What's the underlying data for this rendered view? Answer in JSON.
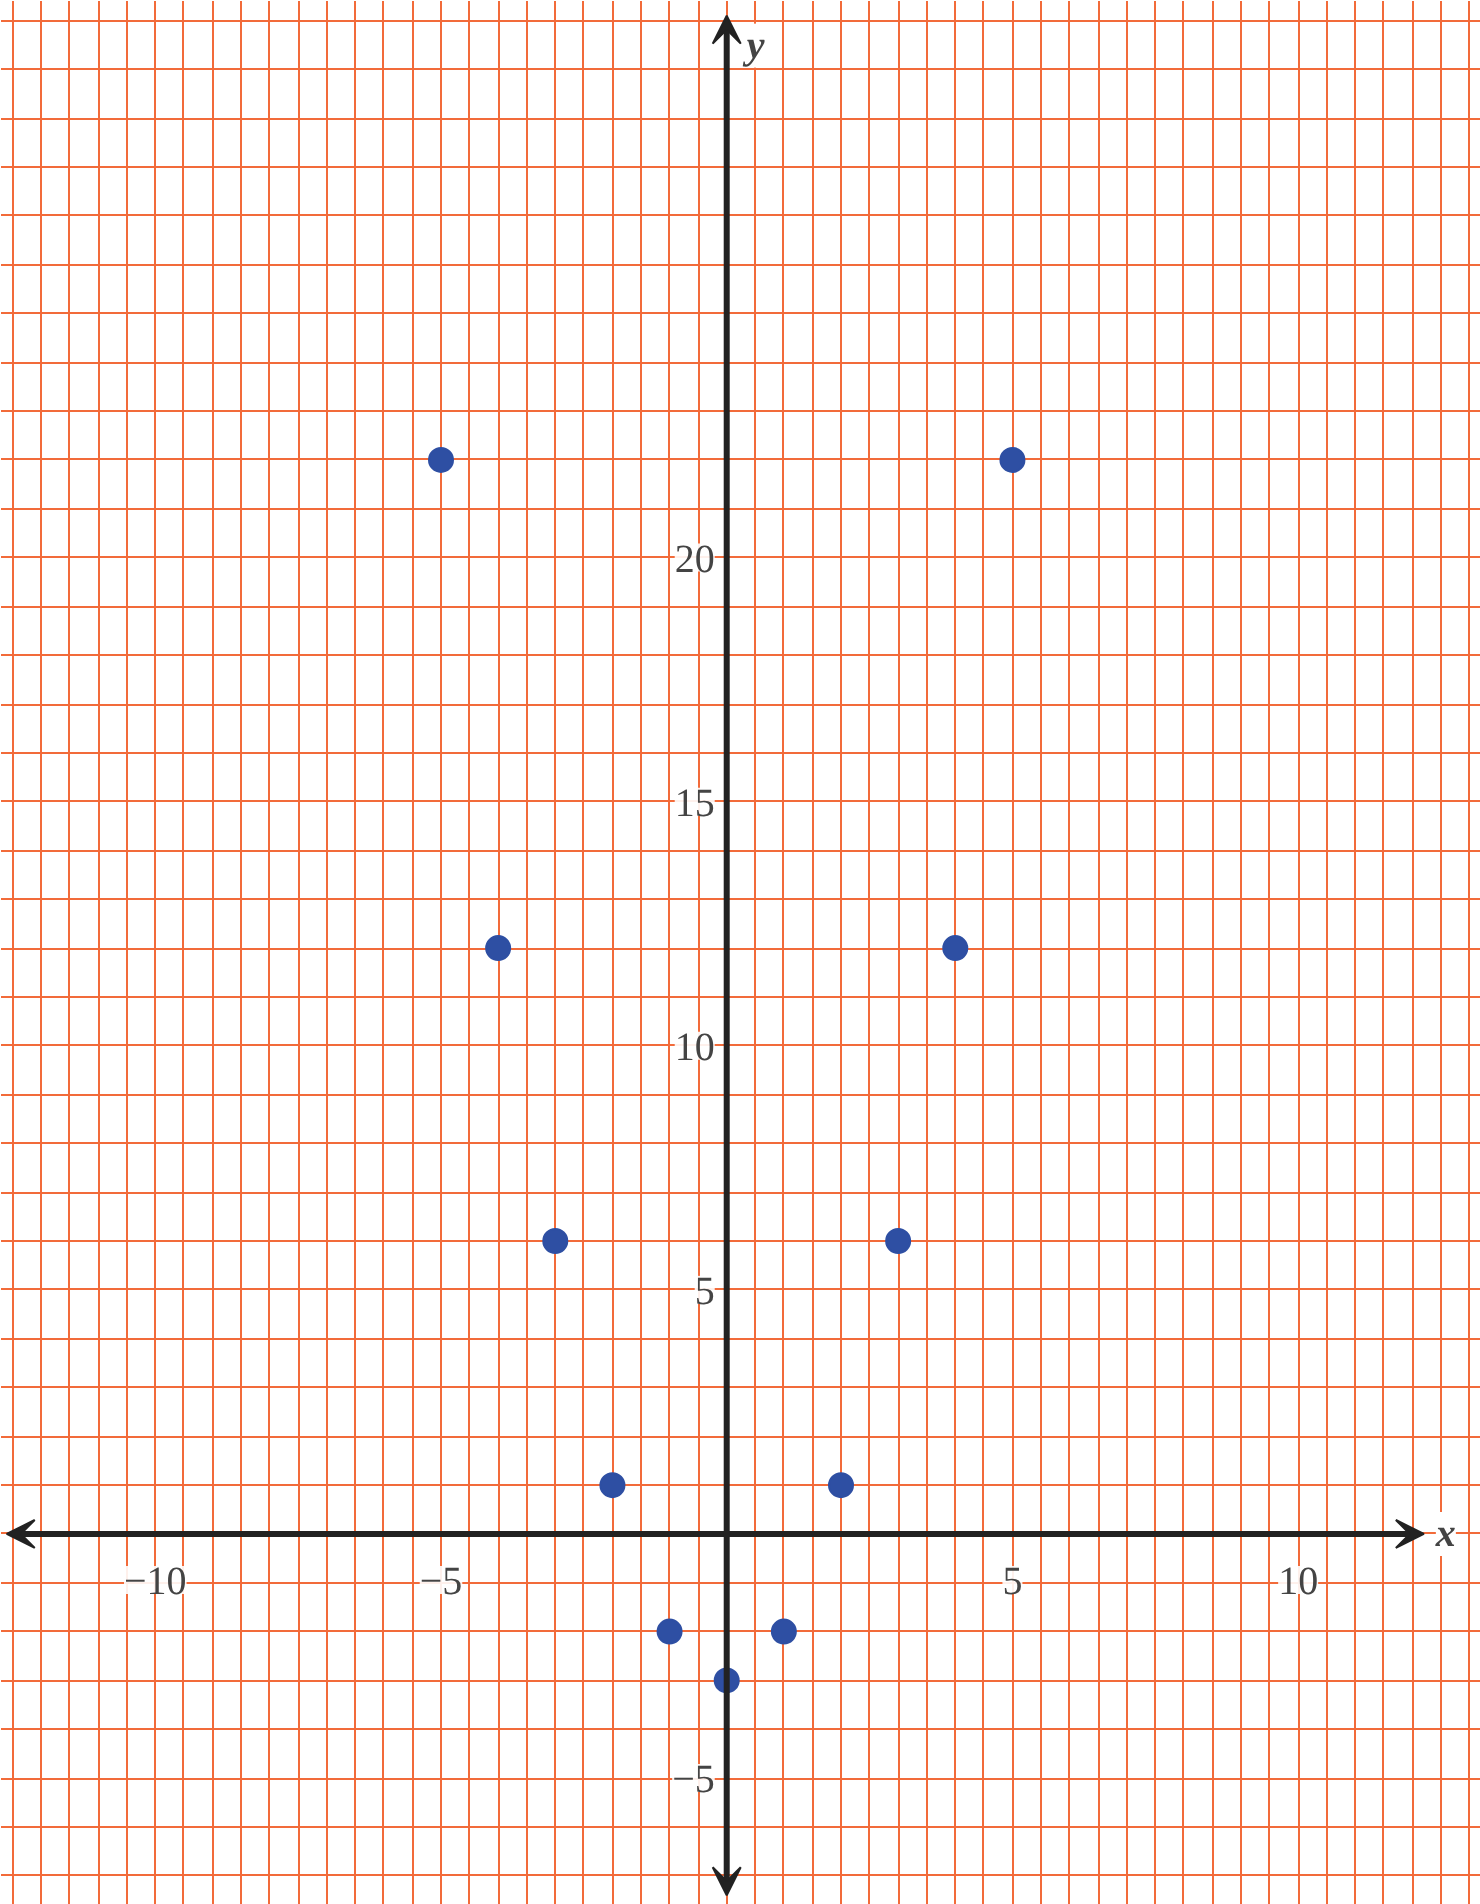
{
  "chart_data": {
    "type": "scatter",
    "xlabel": "x",
    "ylabel": "y",
    "x": [
      -5,
      -4,
      -3,
      -2,
      -1,
      0,
      1,
      2,
      3,
      4,
      5
    ],
    "values": [
      22,
      12,
      6,
      1,
      -2,
      -3,
      -2,
      1,
      6,
      12,
      22
    ],
    "color": "#2e4fa3",
    "marker": "circle",
    "grid": true,
    "xlim": [
      -12.7,
      13.2
    ],
    "ylim": [
      -7.6,
      31.4
    ],
    "xticks": [
      {
        "value": -10,
        "label": "−10"
      },
      {
        "value": -5,
        "label": "−5"
      },
      5,
      10
    ],
    "yticks": [
      {
        "value": -5,
        "label": "−5"
      },
      5,
      10,
      15,
      20
    ]
  }
}
